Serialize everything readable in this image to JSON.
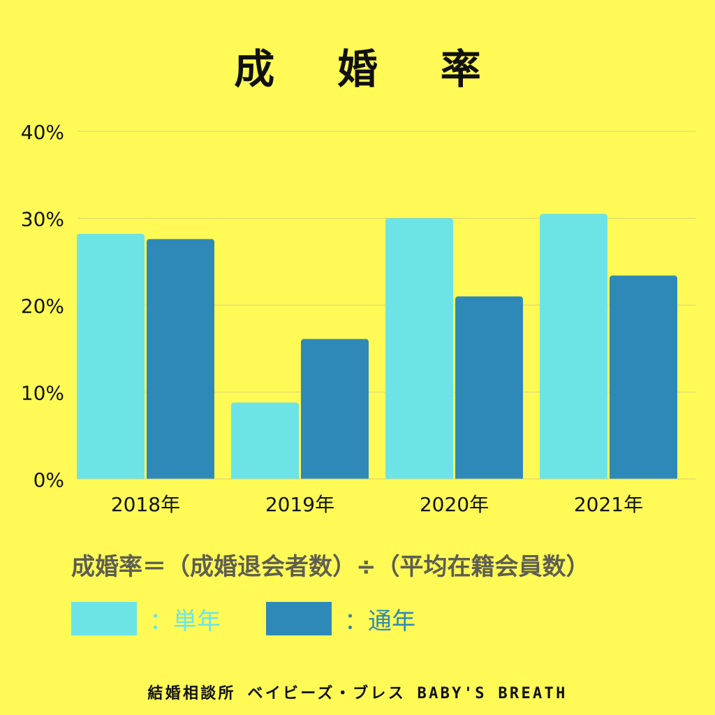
{
  "title": "成 婚 率",
  "formula": "成婚率＝（成婚退会者数）÷（平均在籍会員数）",
  "legend": [
    {
      "label": "：単年",
      "color": "#6CE4E6"
    },
    {
      "label": "：通年",
      "color": "#2E89B8"
    }
  ],
  "footer": "結婚相談所 ベイビーズ・ブレス BABY'S BREATH",
  "colors": {
    "background": "#FFFA55",
    "gridline": "#D7D27A",
    "axis_text": "#111111",
    "formula_text": "#5E5E52"
  },
  "chart_data": {
    "type": "bar",
    "categories": [
      "2018年",
      "2019年",
      "2020年",
      "2021年"
    ],
    "series": [
      {
        "name": "単年",
        "values": [
          28.2,
          8.8,
          30.0,
          30.5
        ],
        "color": "#6CE4E6"
      },
      {
        "name": "通年",
        "values": [
          27.6,
          16.1,
          21.0,
          23.4
        ],
        "color": "#2E89B8"
      }
    ],
    "yticks": [
      "0%",
      "10%",
      "20%",
      "30%",
      "40%"
    ],
    "ylim": [
      0,
      40
    ],
    "grid": true,
    "legend_position": "bottom-left"
  }
}
